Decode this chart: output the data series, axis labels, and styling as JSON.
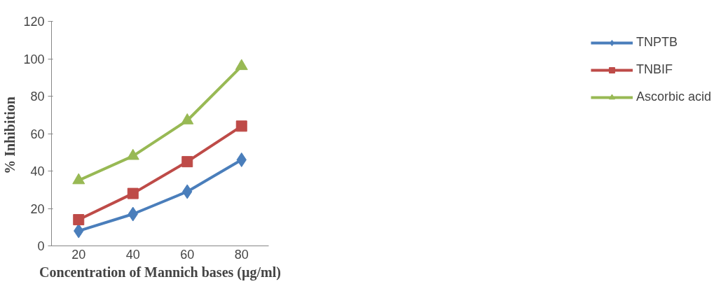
{
  "chart_data": {
    "type": "line",
    "xlabel": "Concentration of Mannich bases (µg/ml)",
    "ylabel": "%  Inhibition",
    "categories": [
      "20",
      "40",
      "60",
      "80"
    ],
    "ylim": [
      0,
      120
    ],
    "yticks": [
      0,
      20,
      40,
      60,
      80,
      100,
      120
    ],
    "grid": false,
    "legend": "right",
    "line_style": "solid",
    "series": [
      {
        "name": "TNPTB",
        "color": "#4a7ebb",
        "marker": "diamond",
        "values": [
          8,
          17,
          29,
          46
        ]
      },
      {
        "name": "TNBIF",
        "color": "#be4b48",
        "marker": "square",
        "values": [
          14,
          28,
          45,
          64
        ]
      },
      {
        "name": "Ascorbic acid",
        "color": "#98b954",
        "marker": "triangle",
        "values": [
          35,
          48,
          67,
          96
        ]
      }
    ]
  }
}
